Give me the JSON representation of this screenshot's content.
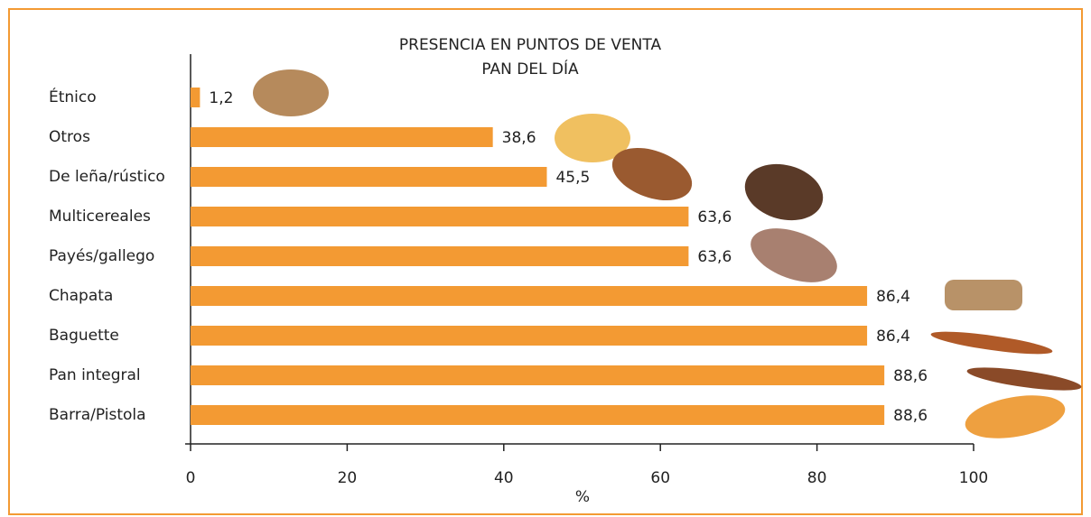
{
  "chart_data": {
    "type": "hbar",
    "title": "PRESENCIA EN PUNTOS DE VENTA",
    "subtitle": "PAN DEL DÍA",
    "x_label": "%",
    "categories": [
      "Étnico",
      "Otros",
      "De leña/rústico",
      "Multicereales",
      "Payés/gallego",
      "Chapata",
      "Baguette",
      "Pan integral",
      "Barra/Pistola"
    ],
    "values": [
      1.2,
      38.6,
      45.5,
      63.6,
      63.6,
      86.4,
      86.4,
      88.6,
      88.6
    ],
    "value_labels": [
      "1,2",
      "38,6",
      "45,5",
      "63,6",
      "63,6",
      "86,4",
      "86,4",
      "88,6",
      "88,6"
    ],
    "color": "#f39a33",
    "xlim": [
      0,
      100
    ],
    "xticks": [
      0,
      20,
      40,
      60,
      80,
      100
    ]
  }
}
